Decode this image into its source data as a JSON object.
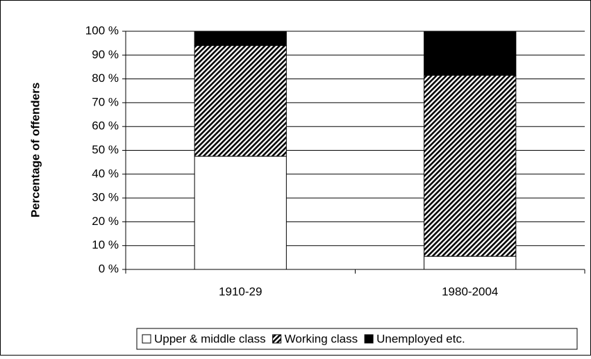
{
  "chart_data": {
    "type": "stacked_bar",
    "y_label": "Percentage of offenders",
    "categories": [
      "1910-29",
      "1980-2004"
    ],
    "series": [
      {
        "name": "Upper & middle class",
        "color": "#ffffff",
        "values": [
          47.5,
          5.5
        ]
      },
      {
        "name": "Working class",
        "color": "#000000",
        "hatch": true,
        "values": [
          46.5,
          76
        ]
      },
      {
        "name": "Unemployed etc.",
        "color": "#000000",
        "values": [
          6,
          18.5
        ]
      }
    ],
    "ylim": [
      0,
      100
    ],
    "yticks": [
      {
        "value": 0,
        "label": "0 %"
      },
      {
        "value": 10,
        "label": "10 %"
      },
      {
        "value": 20,
        "label": "20 %"
      },
      {
        "value": 30,
        "label": "30 %"
      },
      {
        "value": 40,
        "label": "40 %"
      },
      {
        "value": 50,
        "label": "50 %"
      },
      {
        "value": 60,
        "label": "60 %"
      },
      {
        "value": 70,
        "label": "70 %"
      },
      {
        "value": 80,
        "label": "80 %"
      },
      {
        "value": 90,
        "label": "90 %"
      },
      {
        "value": 100,
        "label": "100 %"
      }
    ],
    "grid": true,
    "legend": "bottom"
  }
}
